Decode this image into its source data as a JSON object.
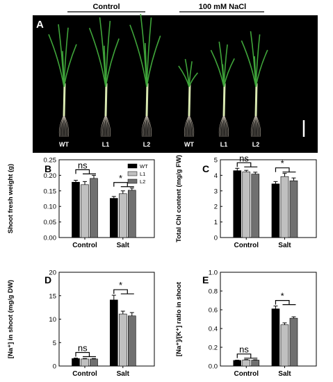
{
  "header": {
    "control": "Control",
    "nacl": "100 mM NaCl"
  },
  "panel_a": {
    "letter": "A",
    "plant_labels": [
      "WT",
      "L1",
      "L2",
      "WT",
      "L1",
      "L2"
    ]
  },
  "colors": {
    "WT": "#000000",
    "L1": "#c0c0c0",
    "L2": "#707070",
    "photo_bg": "#000000",
    "leaf": "#3fa43a",
    "stem": "#d8e8b0",
    "root": "#d9cfc0"
  },
  "chart_data": [
    {
      "panel": "B",
      "type": "bar",
      "categories": [
        "Control",
        "Salt"
      ],
      "series": [
        {
          "name": "WT",
          "values": [
            0.178,
            0.126
          ],
          "errors": [
            0.006,
            0.006
          ]
        },
        {
          "name": "L1",
          "values": [
            0.17,
            0.141
          ],
          "errors": [
            0.01,
            0.009
          ]
        },
        {
          "name": "L2",
          "values": [
            0.19,
            0.152
          ],
          "errors": [
            0.01,
            0.007
          ]
        }
      ],
      "ylabel": "Shoot fresh weight (g)",
      "ylim": [
        0,
        0.25
      ],
      "yticks": [
        "0.00",
        "0.05",
        "0.10",
        "0.15",
        "0.20",
        "0.25"
      ],
      "legend": "top-right",
      "annotations": [
        "ns",
        "*"
      ]
    },
    {
      "panel": "C",
      "type": "bar",
      "categories": [
        "Control",
        "Salt"
      ],
      "series": [
        {
          "name": "WT",
          "values": [
            4.3,
            3.45
          ],
          "errors": [
            0.15,
            0.15
          ]
        },
        {
          "name": "L1",
          "values": [
            4.22,
            3.92
          ],
          "errors": [
            0.1,
            0.2
          ]
        },
        {
          "name": "L2",
          "values": [
            4.08,
            3.65
          ],
          "errors": [
            0.12,
            0.18
          ]
        }
      ],
      "ylabel": "Total Chl content (mg/g FW)",
      "ylim": [
        0,
        5
      ],
      "yticks": [
        "0",
        "1",
        "2",
        "3",
        "4",
        "5"
      ],
      "annotations": [
        "ns",
        "*"
      ]
    },
    {
      "panel": "D",
      "type": "bar",
      "categories": [
        "Control",
        "Salt"
      ],
      "series": [
        {
          "name": "WT",
          "values": [
            1.6,
            14.1
          ],
          "errors": [
            0.1,
            1.0
          ]
        },
        {
          "name": "L1",
          "values": [
            1.5,
            11.1
          ],
          "errors": [
            0.1,
            0.6
          ]
        },
        {
          "name": "L2",
          "values": [
            1.5,
            10.7
          ],
          "errors": [
            0.1,
            0.7
          ]
        }
      ],
      "ylabel": "[Na⁺] in shoot (mg/g DW)",
      "ylim": [
        0,
        20
      ],
      "yticks": [
        "0",
        "5",
        "10",
        "15",
        "20"
      ],
      "annotations": [
        "ns",
        "*"
      ]
    },
    {
      "panel": "E",
      "type": "bar",
      "categories": [
        "Control",
        "Salt"
      ],
      "series": [
        {
          "name": "WT",
          "values": [
            0.06,
            0.61
          ],
          "errors": [
            0.003,
            0.03
          ]
        },
        {
          "name": "L1",
          "values": [
            0.065,
            0.44
          ],
          "errors": [
            0.004,
            0.02
          ]
        },
        {
          "name": "L2",
          "values": [
            0.063,
            0.51
          ],
          "errors": [
            0.004,
            0.015
          ]
        }
      ],
      "ylabel": "[Na⁺]/[K⁺] ratio in shoot",
      "ylim": [
        0,
        1.0
      ],
      "yticks": [
        "0.0",
        "0.2",
        "0.4",
        "0.6",
        "0.8",
        "1.0"
      ],
      "annotations": [
        "ns",
        "*"
      ]
    }
  ]
}
